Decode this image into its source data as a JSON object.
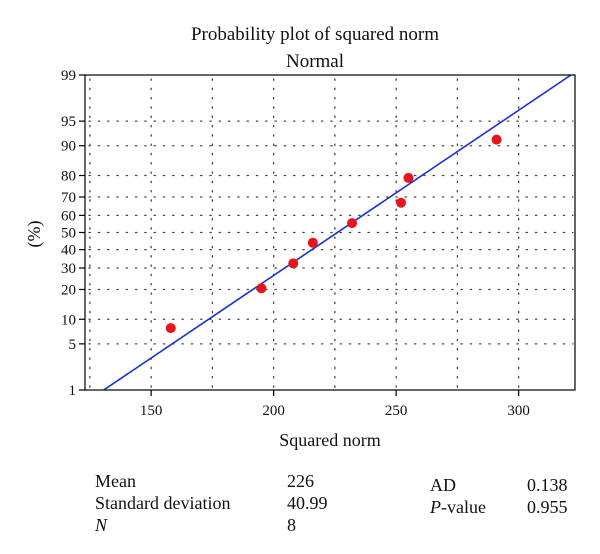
{
  "chart_data": {
    "type": "scatter",
    "title": "Probability plot of squared norm",
    "subtitle": "Normal",
    "xlabel": "Squared norm",
    "ylabel": "(%)",
    "xlim": [
      123,
      323
    ],
    "ylim_percent": [
      1,
      99
    ],
    "y_scale": "normal-probability",
    "x_ticks": [
      150,
      200,
      250,
      300
    ],
    "y_ticks": [
      1,
      5,
      10,
      20,
      30,
      40,
      50,
      60,
      70,
      80,
      90,
      95,
      99
    ],
    "grid": "dotted",
    "points": [
      {
        "x": 158,
        "y": 7.9
      },
      {
        "x": 195,
        "y": 20.5
      },
      {
        "x": 208,
        "y": 32.4
      },
      {
        "x": 216,
        "y": 44.0
      },
      {
        "x": 232,
        "y": 55.5
      },
      {
        "x": 252,
        "y": 67.0
      },
      {
        "x": 255,
        "y": 79.0
      },
      {
        "x": 291,
        "y": 91.5
      }
    ],
    "fit_line": {
      "mean": 226,
      "sd": 40.99
    },
    "colors": {
      "points": "#e8141c",
      "line": "#1a2fd0",
      "frame": "#000000"
    }
  },
  "stats": {
    "mean_label": "Mean",
    "mean_value": "226",
    "sd_label": "Standard deviation",
    "sd_value": "40.99",
    "n_label": "N",
    "n_value": "8",
    "ad_label": "AD",
    "ad_value": "0.138",
    "p_label_italic": "P",
    "p_label_rest": "-value",
    "p_value": "0.955"
  }
}
